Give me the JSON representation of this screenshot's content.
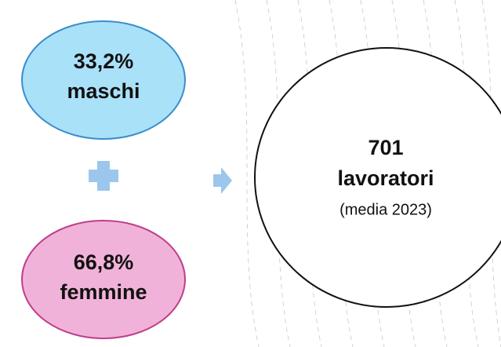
{
  "nodes": [
    {
      "value": "33,2%",
      "label": "maschi"
    },
    {
      "value": "66,8%",
      "label": "femmine"
    },
    {
      "value": "701",
      "label": "lavoratori",
      "note": "(media 2023)"
    }
  ]
}
